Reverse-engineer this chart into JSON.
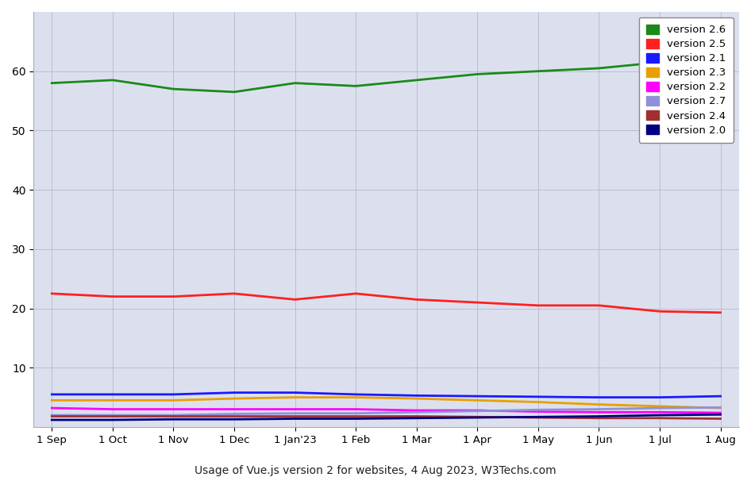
{
  "x_labels": [
    "1 Sep",
    "1 Oct",
    "1 Nov",
    "1 Dec",
    "1 Jan'23",
    "1 Feb",
    "1 Mar",
    "1 Apr",
    "1 May",
    "1 Jun",
    "1 Jul",
    "1 Aug"
  ],
  "x_values": [
    0,
    1,
    2,
    3,
    4,
    5,
    6,
    7,
    8,
    9,
    10,
    11
  ],
  "series": [
    {
      "label": "version 2.6",
      "color": "#1a8a1a",
      "linewidth": 2.0,
      "data": [
        58.0,
        58.5,
        57.0,
        56.5,
        58.0,
        57.5,
        58.5,
        59.5,
        60.0,
        60.5,
        61.5,
        62.0
      ]
    },
    {
      "label": "version 2.5",
      "color": "#ff2020",
      "linewidth": 2.0,
      "data": [
        22.5,
        22.0,
        22.0,
        22.5,
        21.5,
        22.5,
        21.5,
        21.0,
        20.5,
        20.5,
        19.5,
        19.3
      ]
    },
    {
      "label": "version 2.1",
      "color": "#1a1aff",
      "linewidth": 2.0,
      "data": [
        5.5,
        5.5,
        5.5,
        5.8,
        5.8,
        5.5,
        5.3,
        5.2,
        5.1,
        5.0,
        5.0,
        5.2
      ]
    },
    {
      "label": "version 2.3",
      "color": "#e8a000",
      "linewidth": 2.0,
      "data": [
        4.5,
        4.5,
        4.5,
        4.8,
        5.0,
        5.0,
        4.8,
        4.5,
        4.2,
        3.8,
        3.5,
        3.2
      ]
    },
    {
      "label": "version 2.2",
      "color": "#ff00ff",
      "linewidth": 2.0,
      "data": [
        3.2,
        3.0,
        3.0,
        3.0,
        3.0,
        3.0,
        2.8,
        2.8,
        2.6,
        2.5,
        2.5,
        2.4
      ]
    },
    {
      "label": "version 2.7",
      "color": "#9090d8",
      "linewidth": 2.0,
      "data": [
        2.0,
        2.0,
        2.0,
        2.2,
        2.3,
        2.3,
        2.5,
        2.7,
        2.9,
        3.0,
        3.2,
        3.3
      ]
    },
    {
      "label": "version 2.4",
      "color": "#a03030",
      "linewidth": 2.0,
      "data": [
        1.8,
        1.8,
        1.8,
        1.8,
        1.8,
        1.8,
        1.8,
        1.7,
        1.6,
        1.5,
        1.5,
        1.4
      ]
    },
    {
      "label": "version 2.0",
      "color": "#000080",
      "linewidth": 2.0,
      "data": [
        1.2,
        1.2,
        1.3,
        1.3,
        1.4,
        1.4,
        1.5,
        1.6,
        1.7,
        1.8,
        2.0,
        2.1
      ]
    }
  ],
  "xlabel": "",
  "ylabel": "",
  "title": "",
  "caption": "Usage of Vue.js version 2 for websites, 4 Aug 2023, W3Techs.com",
  "ylim": [
    0,
    70
  ],
  "yticks": [
    10,
    20,
    30,
    40,
    50,
    60
  ],
  "bg_color": "#dce0ee",
  "grid_color": "#b8bcd4",
  "legend_loc": "upper right"
}
